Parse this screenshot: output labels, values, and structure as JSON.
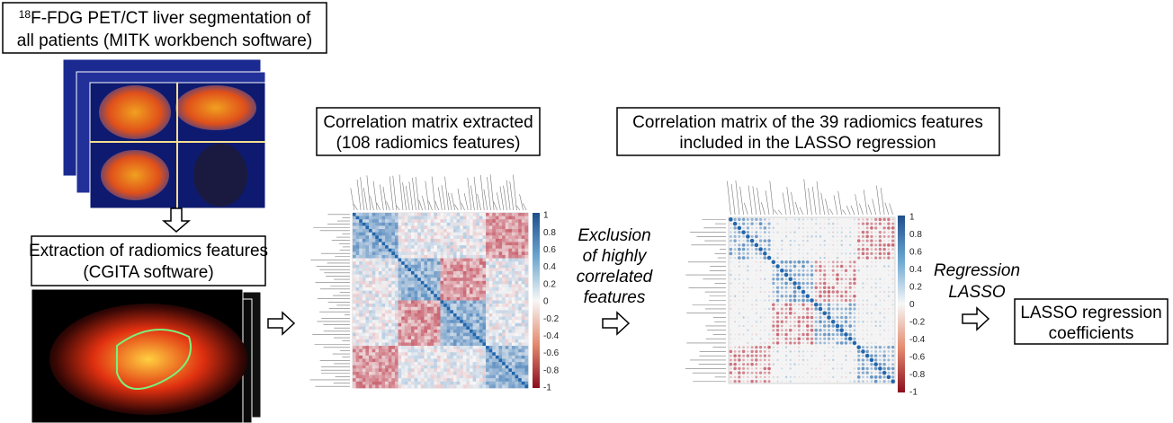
{
  "box_segmentation": {
    "superscript": "18",
    "line1": "F-FDG PET/CT liver segmentation of",
    "line2": "all patients (MITK workbench software)"
  },
  "box_extraction": {
    "line1": "Extraction of radiomics features",
    "line2": "(CGITA software)"
  },
  "box_matrix_all": {
    "line1": "Correlation matrix extracted",
    "line2": "(108 radiomics features)"
  },
  "exclusion_step": {
    "lines": [
      "Exclusion",
      "of highly",
      "correlated",
      "features"
    ]
  },
  "box_matrix_selected": {
    "line1": "Correlation matrix of the 39 radiomics features",
    "line2": "included in the LASSO regression"
  },
  "regression_step": {
    "lines": [
      "Regression",
      "LASSO"
    ]
  },
  "box_result": {
    "line1": "LASSO regression",
    "line2": "coefficients"
  },
  "colorbar_all": {
    "labels": [
      "1",
      "0.8",
      "0.6",
      "0.4",
      "0.2",
      "0",
      "-0.2",
      "-0.4",
      "-0.6",
      "-0.8",
      "-1"
    ]
  },
  "colorbar_selected": {
    "labels": [
      "1",
      "0.8",
      "0.6",
      "0.4",
      "0.2",
      "0",
      "-0.2",
      "-0.4",
      "-0.6",
      "-0.8",
      "-1"
    ]
  }
}
